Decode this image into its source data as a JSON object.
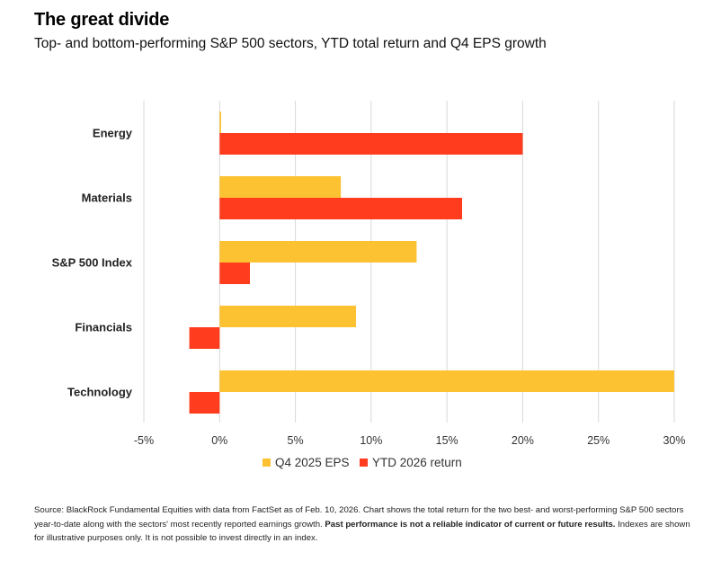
{
  "header": {
    "title": "The great divide",
    "subtitle": "Top- and bottom-performing S&P 500 sectors, YTD total return and Q4 EPS growth"
  },
  "chart_data": {
    "type": "bar",
    "orientation": "horizontal",
    "categories": [
      "Energy",
      "Materials",
      "S&P 500 Index",
      "Financials",
      "Technology"
    ],
    "series": [
      {
        "name": "Q4 2025 EPS",
        "color": "#FDC231",
        "values": [
          0.1,
          8,
          13,
          9,
          30
        ]
      },
      {
        "name": "YTD 2026 return",
        "color": "#FF3C1E",
        "values": [
          20,
          16,
          2,
          -2,
          -2
        ]
      }
    ],
    "xlim": [
      -5,
      30
    ],
    "xticks": [
      -5,
      0,
      5,
      10,
      15,
      20,
      25,
      30
    ],
    "tick_labels": [
      "-5%",
      "0%",
      "5%",
      "10%",
      "15%",
      "20%",
      "25%",
      "30%"
    ],
    "grid": "vertical",
    "legend_position": "bottom"
  },
  "footer": {
    "source_text": "Source: BlackRock Fundamental Equities with data from FactSet as of Feb. 10, 2026. Chart shows the total return for the two best- and worst-performing S&P 500 sectors year-to-date along with the sectors' most recently reported earnings growth. ",
    "source_bold": "Past performance is not a reliable indicator of current or future results.",
    "source_tail": " Indexes are shown for illustrative purposes only. It is not possible to invest directly in an index."
  }
}
